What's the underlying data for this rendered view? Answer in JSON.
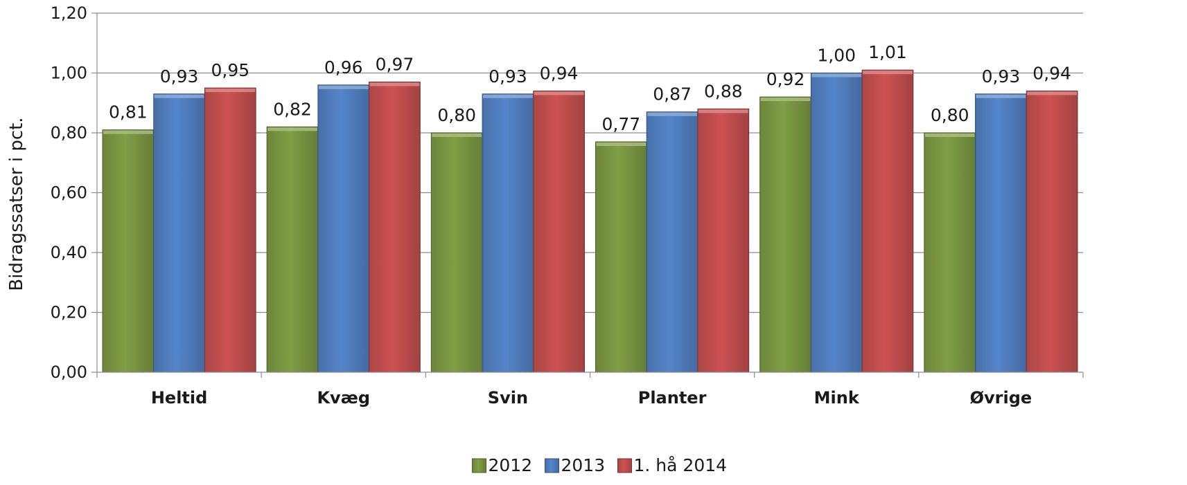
{
  "chart_data": {
    "type": "bar",
    "title": "",
    "xlabel": "",
    "ylabel": "Bidragssatser i pct.",
    "ylim": [
      0,
      1.2
    ],
    "ytick_step": 0.2,
    "ytick_labels": [
      "0,00",
      "0,20",
      "0,40",
      "0,60",
      "0,80",
      "1,00",
      "1,20"
    ],
    "grid": true,
    "legend_position": "bottom",
    "categories": [
      "Heltid",
      "Kvæg",
      "Svin",
      "Planter",
      "Mink",
      "Øvrige"
    ],
    "series": [
      {
        "name": "2012",
        "color": "#7f9e45",
        "values": [
          0.81,
          0.82,
          0.8,
          0.77,
          0.92,
          0.8
        ],
        "labels": [
          "0,81",
          "0,82",
          "0,80",
          "0,77",
          "0,92",
          "0,80"
        ]
      },
      {
        "name": "2013",
        "color": "#5585c9",
        "values": [
          0.93,
          0.96,
          0.93,
          0.87,
          1.0,
          0.93
        ],
        "labels": [
          "0,93",
          "0,96",
          "0,93",
          "0,87",
          "1,00",
          "0,93"
        ]
      },
      {
        "name": "1. hå 2014",
        "color": "#cc5252",
        "values": [
          0.95,
          0.97,
          0.94,
          0.88,
          1.01,
          0.94
        ],
        "labels": [
          "0,95",
          "0,97",
          "0,94",
          "0,88",
          "1,01",
          "0,94"
        ]
      }
    ]
  }
}
